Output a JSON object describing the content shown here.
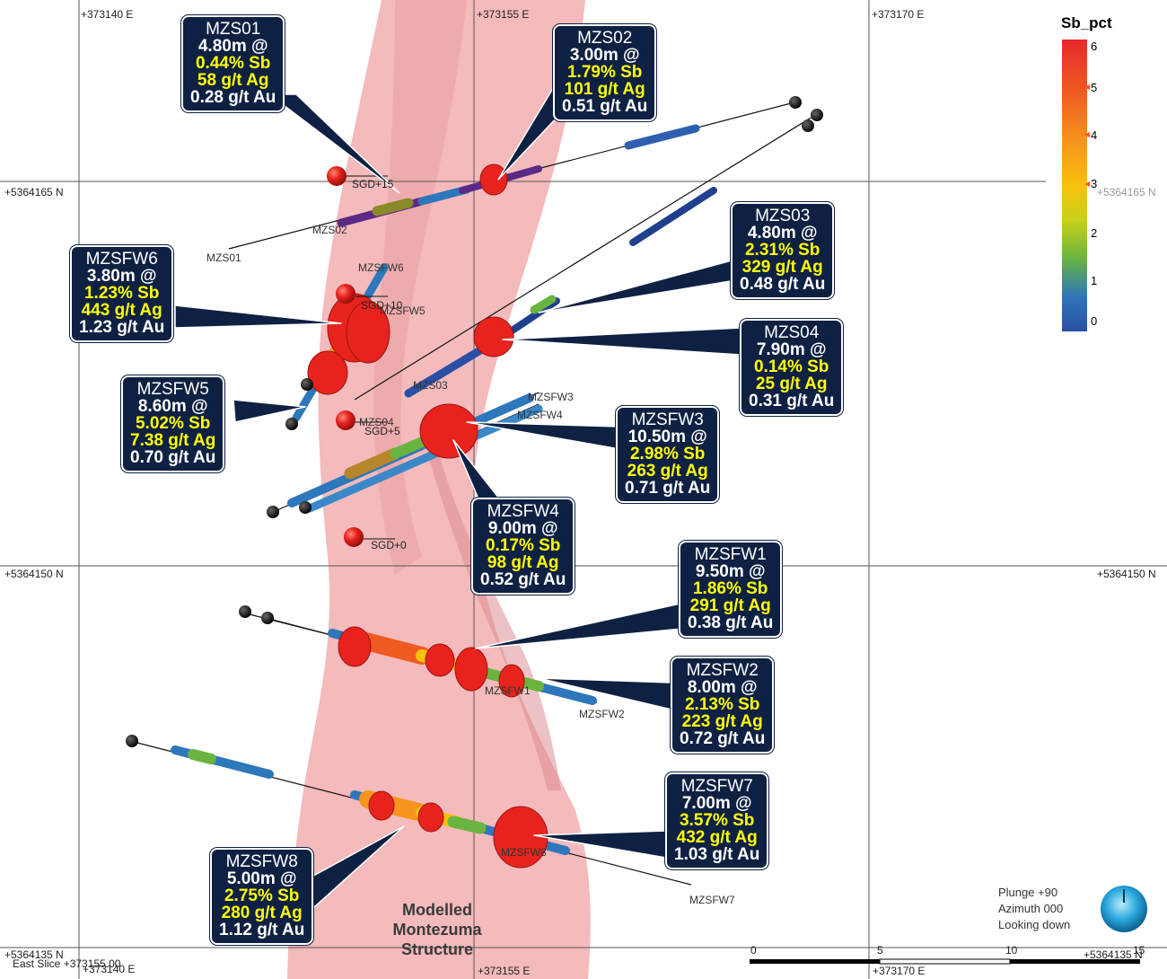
{
  "grid": {
    "easting_top": [
      "+373140 E",
      "+373155 E",
      "+373170 E"
    ],
    "easting_bottom": [
      "+373140 E",
      "+373155 E",
      "+373170 E"
    ],
    "northing_left": [
      "+5364165 N",
      "+5364150 N",
      "+5364135 N"
    ],
    "northing_right": [
      "+5364165 N",
      "+5364150 N",
      "+5364135 N"
    ],
    "east_slice": "East Slice +373155.00"
  },
  "legend": {
    "title": "Sb_pct",
    "ticks": [
      "6",
      "5",
      "4",
      "3",
      "2",
      "1",
      "0"
    ],
    "colors": [
      "#e8282a",
      "#ef5a22",
      "#f7941d",
      "#f9c00d",
      "#e7d21a",
      "#69b43f",
      "#2e77bb",
      "#2a4fa3"
    ]
  },
  "callouts": [
    {
      "name": "MZS01",
      "length": "4.80m @",
      "sb": "0.44% Sb",
      "ag": "58 g/t Ag",
      "au": "0.28 g/t Au"
    },
    {
      "name": "MZS02",
      "length": "3.00m @",
      "sb": "1.79% Sb",
      "ag": "101 g/t Ag",
      "au": "0.51 g/t Au"
    },
    {
      "name": "MZS03",
      "length": "4.80m @",
      "sb": "2.31% Sb",
      "ag": "329 g/t Ag",
      "au": "0.48 g/t Au"
    },
    {
      "name": "MZS04",
      "length": "7.90m @",
      "sb": "0.14% Sb",
      "ag": "25 g/t Ag",
      "au": "0.31 g/t Au"
    },
    {
      "name": "MZSFW6",
      "length": "3.80m @",
      "sb": "1.23% Sb",
      "ag": "443 g/t Ag",
      "au": "1.23 g/t Au"
    },
    {
      "name": "MZSFW5",
      "length": "8.60m @",
      "sb": "5.02% Sb",
      "ag": "7.38 g/t Ag",
      "au": "0.70 g/t Au"
    },
    {
      "name": "MZSFW3",
      "length": "10.50m @",
      "sb": "2.98% Sb",
      "ag": "263 g/t Ag",
      "au": "0.71 g/t Au"
    },
    {
      "name": "MZSFW4",
      "length": "9.00m @",
      "sb": "0.17% Sb",
      "ag": "98 g/t Ag",
      "au": "0.52 g/t Au"
    },
    {
      "name": "MZSFW1",
      "length": "9.50m @",
      "sb": "1.86% Sb",
      "ag": "291 g/t Ag",
      "au": "0.38 g/t Au"
    },
    {
      "name": "MZSFW2",
      "length": "8.00m @",
      "sb": "2.13% Sb",
      "ag": "223 g/t Ag",
      "au": "0.72 g/t Au"
    },
    {
      "name": "MZSFW7",
      "length": "7.00m @",
      "sb": "3.57% Sb",
      "ag": "432 g/t Ag",
      "au": "1.03 g/t Au"
    },
    {
      "name": "MZSFW8",
      "length": "5.00m @",
      "sb": "2.75% Sb",
      "ag": "280 g/t Ag",
      "au": "1.12 g/t Au"
    }
  ],
  "drillhole_labels": [
    "MZS01",
    "MZS02",
    "MZS03",
    "MZS04",
    "MZSFW6",
    "MZSFW5",
    "MZSFW3",
    "MZSFW4",
    "MZSFW1",
    "MZSFW2",
    "MZSFW8",
    "MZSFW7"
  ],
  "sgd_labels": [
    "SGD+15",
    "SGD+10",
    "SGD+5",
    "SGD+0"
  ],
  "structure_label": [
    "Modelled",
    "Montezuma",
    "Structure"
  ],
  "view": {
    "plunge": "Plunge +90",
    "azimuth": "Azimuth 000",
    "looking": "Looking down"
  },
  "scale": {
    "ticks": [
      "0",
      "5",
      "10",
      "15"
    ]
  },
  "colors": {
    "callout_bg": "#0f2142",
    "highlight": "#ffff00",
    "structure": "#f2aeb0",
    "sphere": "#e8231d"
  }
}
